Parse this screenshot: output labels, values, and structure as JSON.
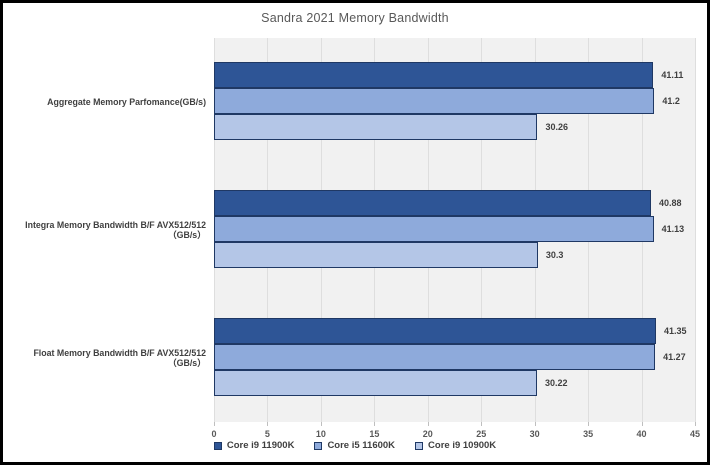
{
  "title": "Sandra 2021 Memory Bandwidth",
  "colors": {
    "frame_border": "#000000",
    "plot_bg": "#F1F1F1",
    "gridline": "#DEDEDE",
    "tick": "#BFBFBF",
    "bar_border": "#1F3864",
    "axis_text": "#595959",
    "label_text": "#404040",
    "series": [
      "#2E5596",
      "#8EAADB",
      "#B4C6E7"
    ]
  },
  "chart_data": {
    "type": "bar",
    "orientation": "horizontal",
    "title": "Sandra 2021 Memory Bandwidth",
    "categories": [
      "Aggregate Memory Parfomance(GB/s)",
      "Integra Memory Bandwidth B/F AVX512/512 （GB/s）",
      "Float Memory Bandwidth B/F AVX512/512 （GB/s）"
    ],
    "series": [
      {
        "name": "Core i9 11900K",
        "color": "#2E5596",
        "values": [
          41.11,
          40.88,
          41.35
        ],
        "labels": [
          "41.11",
          "40.88",
          "41.35"
        ]
      },
      {
        "name": "Core i5 11600K",
        "color": "#8EAADB",
        "values": [
          41.2,
          41.13,
          41.27
        ],
        "labels": [
          "41.2",
          "41.13",
          "41.27"
        ]
      },
      {
        "name": "Core i9 10900K",
        "color": "#B4C6E7",
        "values": [
          30.26,
          30.3,
          30.22
        ],
        "labels": [
          "30.26",
          "30.3",
          "30.22"
        ]
      }
    ],
    "xlim": [
      0,
      45
    ],
    "x_ticks": [
      0,
      5,
      10,
      15,
      20,
      25,
      30,
      35,
      40,
      45
    ],
    "grid": true,
    "legend_position": "bottom"
  }
}
